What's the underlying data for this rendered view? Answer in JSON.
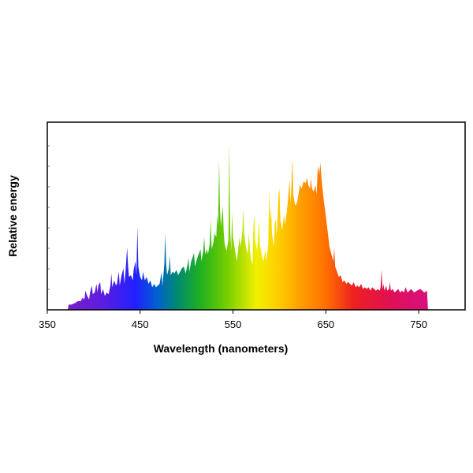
{
  "chart_data": {
    "type": "area",
    "title": "",
    "xlabel": "Wavelength (nanometers)",
    "ylabel": "Relative energy",
    "xlim": [
      350,
      800
    ],
    "ylim": [
      0,
      1
    ],
    "x_ticks": [
      350,
      450,
      550,
      650,
      750
    ],
    "y_tick_labels": false,
    "grid": false,
    "legend": "none",
    "fill": "wavelength-spectrum gradient",
    "gradient_stops": [
      {
        "x": 372,
        "color": "#7a1ec8"
      },
      {
        "x": 410,
        "color": "#5a1ee0"
      },
      {
        "x": 445,
        "color": "#2020ff"
      },
      {
        "x": 468,
        "color": "#0060d0"
      },
      {
        "x": 490,
        "color": "#008a70"
      },
      {
        "x": 515,
        "color": "#20b020"
      },
      {
        "x": 545,
        "color": "#7ad000"
      },
      {
        "x": 575,
        "color": "#f0f000"
      },
      {
        "x": 600,
        "color": "#ffcc00"
      },
      {
        "x": 625,
        "color": "#ff9a00"
      },
      {
        "x": 650,
        "color": "#ff7000"
      },
      {
        "x": 680,
        "color": "#ee2020"
      },
      {
        "x": 720,
        "color": "#e01055"
      },
      {
        "x": 760,
        "color": "#d81080"
      }
    ],
    "points": [
      [
        372,
        0.0
      ],
      [
        373,
        0.03
      ],
      [
        376,
        0.03
      ],
      [
        380,
        0.04
      ],
      [
        383,
        0.05
      ],
      [
        386,
        0.05
      ],
      [
        388,
        0.07
      ],
      [
        390,
        0.06
      ],
      [
        391,
        0.11
      ],
      [
        393,
        0.08
      ],
      [
        395,
        0.06
      ],
      [
        396,
        0.1
      ],
      [
        398,
        0.14
      ],
      [
        399,
        0.09
      ],
      [
        401,
        0.1
      ],
      [
        403,
        0.15
      ],
      [
        404,
        0.1
      ],
      [
        405,
        0.14
      ],
      [
        407,
        0.16
      ],
      [
        408,
        0.09
      ],
      [
        410,
        0.12
      ],
      [
        412,
        0.08
      ],
      [
        414,
        0.1
      ],
      [
        416,
        0.09
      ],
      [
        418,
        0.14
      ],
      [
        419,
        0.21
      ],
      [
        420,
        0.13
      ],
      [
        422,
        0.17
      ],
      [
        424,
        0.14
      ],
      [
        425,
        0.15
      ],
      [
        427,
        0.22
      ],
      [
        428,
        0.14
      ],
      [
        430,
        0.2
      ],
      [
        432,
        0.24
      ],
      [
        433,
        0.15
      ],
      [
        434,
        0.2
      ],
      [
        436,
        0.36
      ],
      [
        437,
        0.25
      ],
      [
        438,
        0.19
      ],
      [
        440,
        0.2
      ],
      [
        442,
        0.17
      ],
      [
        443,
        0.23
      ],
      [
        445,
        0.28
      ],
      [
        446,
        0.2
      ],
      [
        447,
        0.48
      ],
      [
        448,
        0.25
      ],
      [
        450,
        0.19
      ],
      [
        452,
        0.17
      ],
      [
        453,
        0.22
      ],
      [
        455,
        0.17
      ],
      [
        457,
        0.19
      ],
      [
        459,
        0.15
      ],
      [
        461,
        0.17
      ],
      [
        463,
        0.13
      ],
      [
        465,
        0.15
      ],
      [
        467,
        0.13
      ],
      [
        469,
        0.14
      ],
      [
        471,
        0.15
      ],
      [
        473,
        0.22
      ],
      [
        474,
        0.14
      ],
      [
        476,
        0.26
      ],
      [
        477,
        0.44
      ],
      [
        478,
        0.27
      ],
      [
        479,
        0.2
      ],
      [
        481,
        0.24
      ],
      [
        482,
        0.31
      ],
      [
        483,
        0.2
      ],
      [
        485,
        0.22
      ],
      [
        487,
        0.21
      ],
      [
        489,
        0.23
      ],
      [
        491,
        0.2
      ],
      [
        493,
        0.22
      ],
      [
        495,
        0.24
      ],
      [
        497,
        0.25
      ],
      [
        499,
        0.21
      ],
      [
        501,
        0.26
      ],
      [
        502,
        0.3
      ],
      [
        503,
        0.22
      ],
      [
        505,
        0.28
      ],
      [
        507,
        0.31
      ],
      [
        508,
        0.33
      ],
      [
        509,
        0.25
      ],
      [
        511,
        0.29
      ],
      [
        513,
        0.32
      ],
      [
        515,
        0.35
      ],
      [
        516,
        0.28
      ],
      [
        518,
        0.34
      ],
      [
        519,
        0.42
      ],
      [
        520,
        0.32
      ],
      [
        522,
        0.35
      ],
      [
        523,
        0.32
      ],
      [
        525,
        0.38
      ],
      [
        526,
        0.52
      ],
      [
        527,
        0.35
      ],
      [
        529,
        0.39
      ],
      [
        530,
        0.44
      ],
      [
        532,
        0.42
      ],
      [
        533,
        0.55
      ],
      [
        534,
        0.48
      ],
      [
        535,
        0.86
      ],
      [
        536,
        0.58
      ],
      [
        537,
        0.48
      ],
      [
        539,
        0.6
      ],
      [
        540,
        0.45
      ],
      [
        541,
        0.38
      ],
      [
        543,
        0.34
      ],
      [
        545,
        0.4
      ],
      [
        546,
        0.97
      ],
      [
        547,
        0.46
      ],
      [
        548,
        0.34
      ],
      [
        549,
        0.56
      ],
      [
        550,
        0.42
      ],
      [
        552,
        0.35
      ],
      [
        554,
        0.28
      ],
      [
        555,
        0.32
      ],
      [
        557,
        0.42
      ],
      [
        558,
        0.36
      ],
      [
        560,
        0.44
      ],
      [
        561,
        0.58
      ],
      [
        562,
        0.44
      ],
      [
        564,
        0.36
      ],
      [
        566,
        0.32
      ],
      [
        567,
        0.44
      ],
      [
        569,
        0.3
      ],
      [
        571,
        0.26
      ],
      [
        572,
        0.48
      ],
      [
        573,
        0.55
      ],
      [
        574,
        0.4
      ],
      [
        576,
        0.34
      ],
      [
        577,
        0.42
      ],
      [
        578,
        0.52
      ],
      [
        579,
        0.38
      ],
      [
        581,
        0.31
      ],
      [
        583,
        0.28
      ],
      [
        585,
        0.35
      ],
      [
        586,
        0.28
      ],
      [
        588,
        0.38
      ],
      [
        589,
        0.7
      ],
      [
        590,
        0.52
      ],
      [
        591,
        0.58
      ],
      [
        592,
        0.44
      ],
      [
        594,
        0.36
      ],
      [
        595,
        0.5
      ],
      [
        596,
        0.52
      ],
      [
        597,
        0.42
      ],
      [
        599,
        0.66
      ],
      [
        600,
        0.7
      ],
      [
        601,
        0.52
      ],
      [
        603,
        0.46
      ],
      [
        605,
        0.55
      ],
      [
        606,
        0.49
      ],
      [
        608,
        0.57
      ],
      [
        609,
        0.62
      ],
      [
        611,
        0.75
      ],
      [
        612,
        0.61
      ],
      [
        613,
        0.72
      ],
      [
        614,
        0.88
      ],
      [
        615,
        0.66
      ],
      [
        617,
        0.6
      ],
      [
        619,
        0.62
      ],
      [
        621,
        0.68
      ],
      [
        622,
        0.72
      ],
      [
        624,
        0.7
      ],
      [
        626,
        0.74
      ],
      [
        628,
        0.73
      ],
      [
        630,
        0.76
      ],
      [
        631,
        0.72
      ],
      [
        633,
        0.7
      ],
      [
        634,
        0.76
      ],
      [
        635,
        0.7
      ],
      [
        637,
        0.68
      ],
      [
        639,
        0.72
      ],
      [
        640,
        0.66
      ],
      [
        641,
        0.79
      ],
      [
        642,
        0.83
      ],
      [
        643,
        0.78
      ],
      [
        644,
        0.85
      ],
      [
        645,
        0.78
      ],
      [
        646,
        0.72
      ],
      [
        648,
        0.62
      ],
      [
        649,
        0.58
      ],
      [
        650,
        0.54
      ],
      [
        652,
        0.45
      ],
      [
        654,
        0.36
      ],
      [
        656,
        0.32
      ],
      [
        658,
        0.28
      ],
      [
        659,
        0.36
      ],
      [
        660,
        0.25
      ],
      [
        662,
        0.22
      ],
      [
        664,
        0.19
      ],
      [
        666,
        0.2
      ],
      [
        668,
        0.16
      ],
      [
        670,
        0.17
      ],
      [
        672,
        0.15
      ],
      [
        674,
        0.16
      ],
      [
        676,
        0.15
      ],
      [
        678,
        0.14
      ],
      [
        680,
        0.16
      ],
      [
        682,
        0.13
      ],
      [
        684,
        0.14
      ],
      [
        686,
        0.13
      ],
      [
        688,
        0.15
      ],
      [
        690,
        0.12
      ],
      [
        692,
        0.13
      ],
      [
        694,
        0.12
      ],
      [
        696,
        0.13
      ],
      [
        698,
        0.11
      ],
      [
        700,
        0.13
      ],
      [
        702,
        0.12
      ],
      [
        704,
        0.11
      ],
      [
        706,
        0.12
      ],
      [
        708,
        0.11
      ],
      [
        709,
        0.13
      ],
      [
        710,
        0.23
      ],
      [
        711,
        0.12
      ],
      [
        712,
        0.15
      ],
      [
        713,
        0.11
      ],
      [
        715,
        0.14
      ],
      [
        716,
        0.11
      ],
      [
        718,
        0.12
      ],
      [
        719,
        0.16
      ],
      [
        720,
        0.11
      ],
      [
        722,
        0.12
      ],
      [
        724,
        0.1
      ],
      [
        726,
        0.11
      ],
      [
        728,
        0.12
      ],
      [
        730,
        0.1
      ],
      [
        732,
        0.11
      ],
      [
        734,
        0.1
      ],
      [
        736,
        0.13
      ],
      [
        738,
        0.1
      ],
      [
        740,
        0.11
      ],
      [
        742,
        0.12
      ],
      [
        745,
        0.1
      ],
      [
        748,
        0.11
      ],
      [
        752,
        0.12
      ],
      [
        756,
        0.1
      ],
      [
        759,
        0.11
      ],
      [
        760,
        0.0
      ]
    ]
  }
}
